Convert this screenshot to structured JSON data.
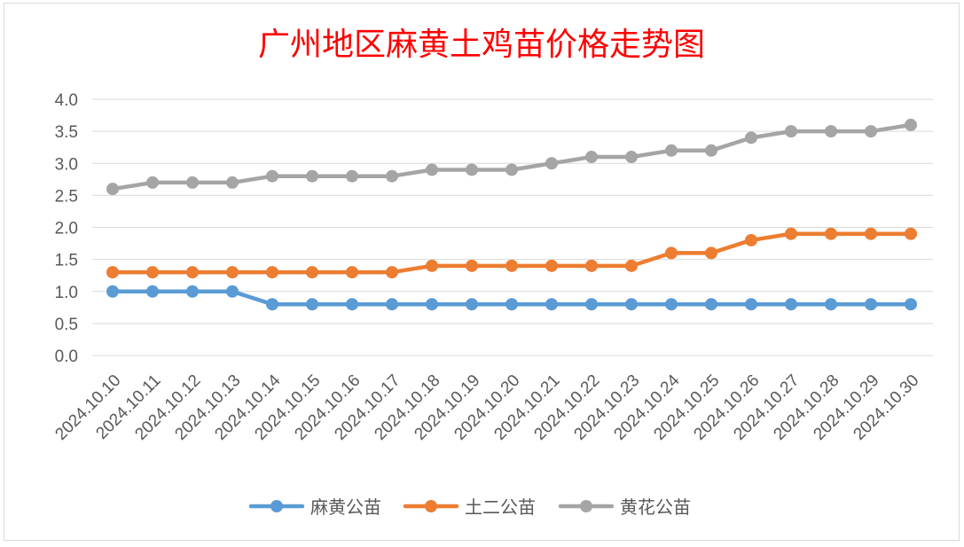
{
  "chart_data": {
    "type": "line",
    "title": "广州地区麻黄土鸡苗价格走势图",
    "categories": [
      "2024.10.10",
      "2024.10.11",
      "2024.10.12",
      "2024.10.13",
      "2024.10.14",
      "2024.10.15",
      "2024.10.16",
      "2024.10.17",
      "2024.10.18",
      "2024.10.19",
      "2024.10.20",
      "2024.10.21",
      "2024.10.22",
      "2024.10.23",
      "2024.10.24",
      "2024.10.25",
      "2024.10.26",
      "2024.10.27",
      "2024.10.28",
      "2024.10.29",
      "2024.10.30"
    ],
    "series": [
      {
        "name": "麻黄公苗",
        "color": "#5b9bd5",
        "values": [
          1.0,
          1.0,
          1.0,
          1.0,
          0.8,
          0.8,
          0.8,
          0.8,
          0.8,
          0.8,
          0.8,
          0.8,
          0.8,
          0.8,
          0.8,
          0.8,
          0.8,
          0.8,
          0.8,
          0.8,
          0.8
        ]
      },
      {
        "name": "土二公苗",
        "color": "#ed7d31",
        "values": [
          1.3,
          1.3,
          1.3,
          1.3,
          1.3,
          1.3,
          1.3,
          1.3,
          1.4,
          1.4,
          1.4,
          1.4,
          1.4,
          1.4,
          1.6,
          1.6,
          1.8,
          1.9,
          1.9,
          1.9,
          1.9
        ]
      },
      {
        "name": "黄花公苗",
        "color": "#a5a5a5",
        "values": [
          2.6,
          2.7,
          2.7,
          2.7,
          2.8,
          2.8,
          2.8,
          2.8,
          2.9,
          2.9,
          2.9,
          3.0,
          3.1,
          3.1,
          3.2,
          3.2,
          3.4,
          3.5,
          3.5,
          3.5,
          3.6
        ]
      }
    ],
    "y_ticks": [
      "0.0",
      "0.5",
      "1.0",
      "1.5",
      "2.0",
      "2.5",
      "3.0",
      "3.5",
      "4.0"
    ],
    "ylim": [
      0,
      4
    ],
    "xlabel": "",
    "ylabel": "",
    "grid": "horizontal",
    "legend_position": "bottom"
  }
}
